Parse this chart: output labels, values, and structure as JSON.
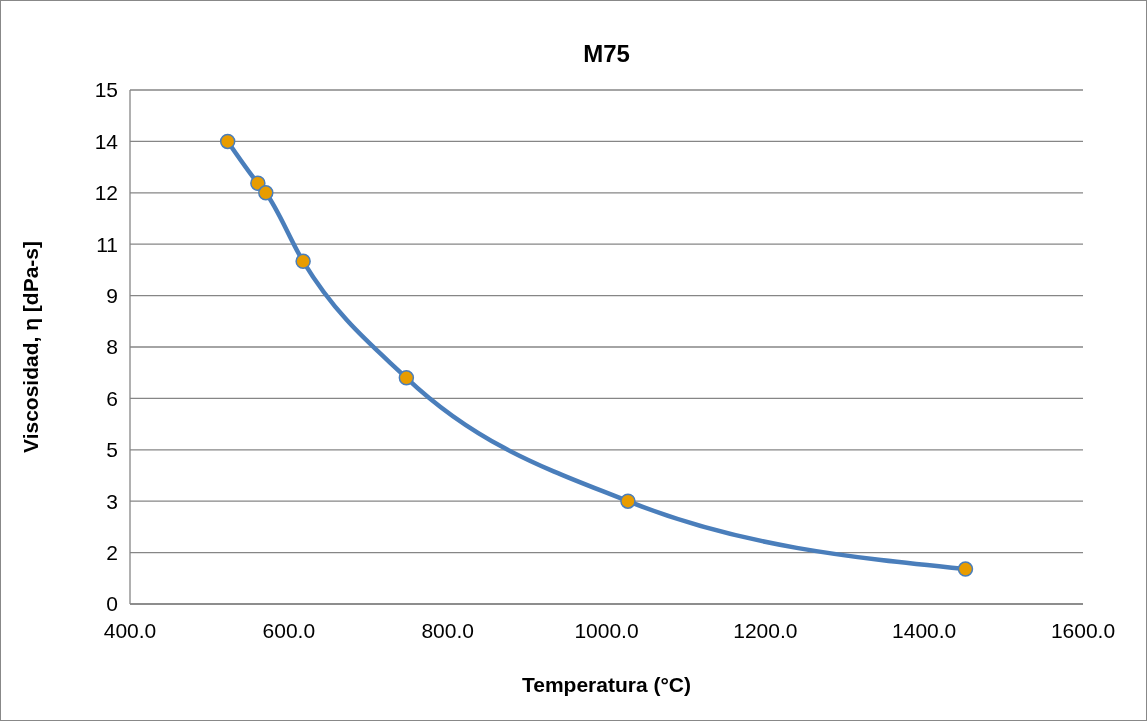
{
  "chart_data": {
    "type": "line",
    "title": "M75",
    "xlabel": "Temperatura (°C)",
    "ylabel": "Viscosidad, η [dPa-s]",
    "x": [
      523,
      561,
      571,
      618,
      748,
      1027,
      1452
    ],
    "series": [
      {
        "color": "#4a7ebb",
        "values": [
          13.5,
          12.28,
          12.0,
          10.0,
          6.6,
          3.0,
          1.02
        ]
      }
    ],
    "xlim": [
      400,
      1600
    ],
    "xticks": [
      {
        "value": 400,
        "label": "400.0"
      },
      {
        "value": 600,
        "label": "600.0"
      },
      {
        "value": 800,
        "label": "800.0"
      },
      {
        "value": 1000,
        "label": "1000.0"
      },
      {
        "value": 1200,
        "label": "1200.0"
      },
      {
        "value": 1400,
        "label": "1400.0"
      },
      {
        "value": 1600,
        "label": "1600.0"
      }
    ],
    "ylim": [
      0,
      15
    ],
    "yticks": [
      0,
      {
        "value": 1.5,
        "label": "2"
      },
      3,
      {
        "value": 4.5,
        "label": "5"
      },
      6,
      {
        "value": 7.5,
        "label": "8"
      },
      9,
      {
        "value": 10.5,
        "label": "11"
      },
      12,
      {
        "value": 13.5,
        "label": "14"
      },
      15
    ],
    "grid": "y",
    "marker": "circle"
  }
}
